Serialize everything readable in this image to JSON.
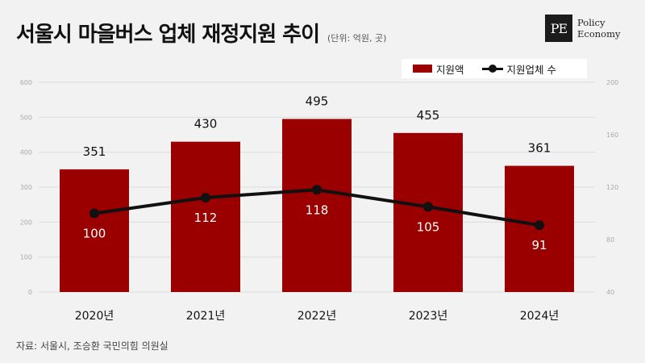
{
  "title": "서울시 마을버스 업체 재정지원 추이",
  "unit": "(단위: 억원, 곳)",
  "logo": {
    "mark": "PE",
    "line1": "Policy",
    "line2": "Economy"
  },
  "legend": {
    "bar": "지원액",
    "line": "지원업체 수"
  },
  "source": "자료: 서울시, 조승환 국민의힘 의원실",
  "colors": {
    "bar": "#9a0000",
    "line": "#111111",
    "background": "#f2f2f2"
  },
  "chart_data": {
    "type": "bar",
    "categories": [
      "2020년",
      "2021년",
      "2022년",
      "2023년",
      "2024년"
    ],
    "series": [
      {
        "name": "지원액",
        "type": "bar",
        "axis": "left",
        "values": [
          351,
          430,
          495,
          455,
          361
        ]
      },
      {
        "name": "지원업체 수",
        "type": "line",
        "axis": "right",
        "values": [
          100,
          112,
          118,
          105,
          91
        ]
      }
    ],
    "left_axis": {
      "ylim": [
        0,
        600
      ],
      "ticks": [
        "0",
        "100",
        "200",
        "300",
        "400",
        "500",
        "600"
      ]
    },
    "right_axis": {
      "ylim": [
        40,
        200
      ],
      "ticks": [
        "40",
        "80",
        "120",
        "160",
        "200"
      ]
    },
    "grid": true,
    "legend_position": "top-right"
  }
}
